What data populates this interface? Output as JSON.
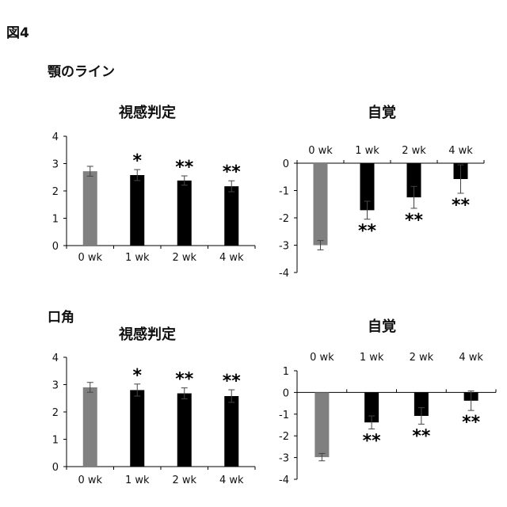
{
  "figure_label": "図4",
  "sections": [
    {
      "title": "顎のライン"
    },
    {
      "title": "口角"
    }
  ],
  "colors": {
    "baseline": "#808080",
    "treatment": "#000000",
    "axis": "#000000"
  },
  "chart_data": [
    {
      "type": "bar",
      "title": "視感判定",
      "categories": [
        "0 wk",
        "1 wk",
        "2 wk",
        "4 wk"
      ],
      "values": [
        2.72,
        2.58,
        2.38,
        2.17
      ],
      "errors": [
        0.18,
        0.2,
        0.17,
        0.2
      ],
      "significance": [
        "",
        "*",
        "**",
        "**"
      ],
      "ylim": [
        0,
        4
      ],
      "yticks": [
        0,
        1,
        2,
        3,
        4
      ],
      "xlabel": "",
      "ylabel": ""
    },
    {
      "type": "bar",
      "title": "自覚",
      "categories": [
        "0 wk",
        "1 wk",
        "2 wk",
        "4 wk"
      ],
      "values": [
        -3.0,
        -1.72,
        -1.25,
        -0.58
      ],
      "errors": [
        0.17,
        0.33,
        0.4,
        0.52
      ],
      "significance": [
        "",
        "**",
        "**",
        "**"
      ],
      "ylim": [
        -4,
        0
      ],
      "yticks": [
        0,
        -1,
        -2,
        -3,
        -4
      ],
      "xlabel": "",
      "ylabel": ""
    },
    {
      "type": "bar",
      "title": "視感判定",
      "categories": [
        "0 wk",
        "1 wk",
        "2 wk",
        "4 wk"
      ],
      "values": [
        2.9,
        2.8,
        2.68,
        2.58
      ],
      "errors": [
        0.18,
        0.22,
        0.2,
        0.23
      ],
      "significance": [
        "",
        "*",
        "**",
        "**"
      ],
      "ylim": [
        0,
        4
      ],
      "yticks": [
        0,
        1,
        2,
        3,
        4
      ],
      "xlabel": "",
      "ylabel": ""
    },
    {
      "type": "bar",
      "title": "自覚",
      "categories": [
        "0 wk",
        "1 wk",
        "2 wk",
        "4 wk"
      ],
      "values": [
        -2.98,
        -1.38,
        -1.08,
        -0.38
      ],
      "errors": [
        0.17,
        0.3,
        0.38,
        0.45
      ],
      "significance": [
        "",
        "**",
        "**",
        "**"
      ],
      "ylim": [
        -4,
        1
      ],
      "yticks": [
        1,
        0,
        -1,
        -2,
        -3,
        -4
      ],
      "xlabel": "",
      "ylabel": ""
    }
  ]
}
